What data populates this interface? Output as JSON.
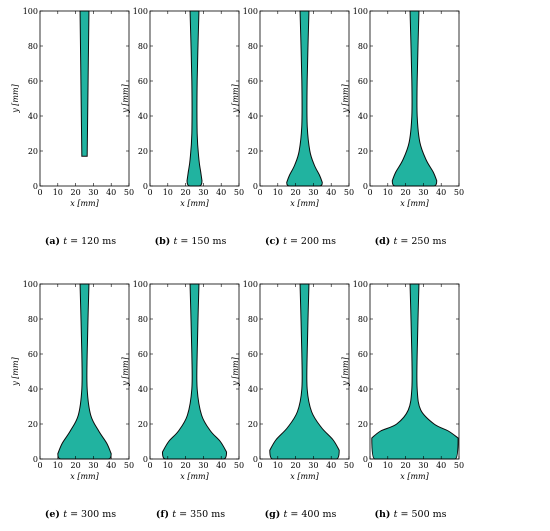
{
  "chart_data": [
    {
      "type": "area",
      "caption_letter": "(a)",
      "caption_var": "t",
      "caption_value": "= 120 ms",
      "xlabel": "x [mm]",
      "ylabel": "y [mm]",
      "xlim": [
        0,
        50
      ],
      "ylim": [
        0,
        100
      ],
      "xticks": [
        0,
        10,
        20,
        30,
        40,
        50
      ],
      "yticks": [
        0,
        20,
        40,
        60,
        80,
        100
      ],
      "profile_y": [
        100,
        17
      ],
      "profile_left_x": [
        22.5,
        23.5
      ],
      "profile_right_x": [
        27.5,
        26.5
      ],
      "bottom_y": 17
    },
    {
      "type": "area",
      "caption_letter": "(b)",
      "caption_var": "t",
      "caption_value": "= 150 ms",
      "xlabel": "x [mm]",
      "ylabel": "y [mm]",
      "xlim": [
        0,
        50
      ],
      "ylim": [
        0,
        100
      ],
      "xticks": [
        0,
        10,
        20,
        30,
        40,
        50
      ],
      "yticks": [
        0,
        20,
        40,
        60,
        80,
        100
      ],
      "profile_y": [
        100,
        60,
        30,
        15,
        8,
        3
      ],
      "profile_left_x": [
        22.5,
        23.5,
        23.5,
        22.5,
        21.5,
        20.8
      ],
      "profile_right_x": [
        27.5,
        26.5,
        26.5,
        27.5,
        28.5,
        29.2
      ],
      "bottom_y": 0
    },
    {
      "type": "area",
      "caption_letter": "(c)",
      "caption_var": "t",
      "caption_value": "= 200 ms",
      "xlabel": "x [mm]",
      "ylabel": "y [mm]",
      "xlim": [
        0,
        50
      ],
      "ylim": [
        0,
        100
      ],
      "xticks": [
        0,
        10,
        20,
        30,
        40,
        50
      ],
      "yticks": [
        0,
        20,
        40,
        60,
        80,
        100
      ],
      "profile_y": [
        100,
        60,
        35,
        20,
        12,
        6,
        2
      ],
      "profile_left_x": [
        22.5,
        23.5,
        23.5,
        22,
        19.5,
        16.5,
        15
      ],
      "profile_right_x": [
        27.5,
        26.5,
        26.5,
        28,
        30.5,
        33.5,
        35
      ],
      "bottom_y": 0
    },
    {
      "type": "area",
      "caption_letter": "(d)",
      "caption_var": "t",
      "caption_value": "= 250 ms",
      "xlabel": "x [mm]",
      "ylabel": "y [mm]",
      "xlim": [
        0,
        50
      ],
      "ylim": [
        0,
        100
      ],
      "xticks": [
        0,
        10,
        20,
        30,
        40,
        50
      ],
      "yticks": [
        0,
        20,
        40,
        60,
        80,
        100
      ],
      "profile_y": [
        100,
        60,
        40,
        25,
        15,
        8,
        3
      ],
      "profile_left_x": [
        22.5,
        23.5,
        23.5,
        22,
        18.5,
        14.5,
        12.5
      ],
      "profile_right_x": [
        27.5,
        26.5,
        26.5,
        28,
        31.5,
        35.5,
        37.5
      ],
      "bottom_y": 0
    },
    {
      "type": "area",
      "caption_letter": "(e)",
      "caption_var": "t",
      "caption_value": "= 300 ms",
      "xlabel": "x [mm]",
      "ylabel": "y [mm]",
      "xlim": [
        0,
        50
      ],
      "ylim": [
        0,
        100
      ],
      "xticks": [
        0,
        10,
        20,
        30,
        40,
        50
      ],
      "yticks": [
        0,
        20,
        40,
        60,
        80,
        100
      ],
      "profile_y": [
        100,
        60,
        40,
        25,
        16,
        9,
        3
      ],
      "profile_left_x": [
        22.5,
        23.5,
        23.5,
        21.5,
        17,
        12.5,
        10
      ],
      "profile_right_x": [
        27.5,
        26.5,
        26.5,
        28.5,
        33,
        37.5,
        40
      ],
      "bottom_y": 0
    },
    {
      "type": "area",
      "caption_letter": "(f)",
      "caption_var": "t",
      "caption_value": "= 350 ms",
      "xlabel": "x [mm]",
      "ylabel": "y [mm]",
      "xlim": [
        0,
        50
      ],
      "ylim": [
        0,
        100
      ],
      "xticks": [
        0,
        10,
        20,
        30,
        40,
        50
      ],
      "yticks": [
        0,
        20,
        40,
        60,
        80,
        100
      ],
      "profile_y": [
        100,
        60,
        40,
        25,
        16,
        10,
        4
      ],
      "profile_left_x": [
        22.5,
        23.5,
        23.5,
        21,
        16,
        10.5,
        7
      ],
      "profile_right_x": [
        27.5,
        26.5,
        26.5,
        29,
        34,
        39.5,
        43
      ],
      "bottom_y": 0
    },
    {
      "type": "area",
      "caption_letter": "(g)",
      "caption_var": "t",
      "caption_value": "= 400 ms",
      "xlabel": "x [mm]",
      "ylabel": "y [mm]",
      "xlim": [
        0,
        50
      ],
      "ylim": [
        0,
        100
      ],
      "xticks": [
        0,
        10,
        20,
        30,
        40,
        50
      ],
      "yticks": [
        0,
        20,
        40,
        60,
        80,
        100
      ],
      "profile_y": [
        100,
        60,
        40,
        27,
        18,
        11,
        5
      ],
      "profile_left_x": [
        22.5,
        23.5,
        23.5,
        21,
        15.5,
        9,
        5.5
      ],
      "profile_right_x": [
        27.5,
        26.5,
        26.5,
        29,
        34.5,
        41,
        44.5
      ],
      "bottom_y": 0
    },
    {
      "type": "area",
      "caption_letter": "(h)",
      "caption_var": "t",
      "caption_value": "= 500 ms",
      "xlabel": "x [mm]",
      "ylabel": "y [mm]",
      "xlim": [
        0,
        50
      ],
      "ylim": [
        0,
        100
      ],
      "xticks": [
        0,
        10,
        20,
        30,
        40,
        50
      ],
      "yticks": [
        0,
        20,
        40,
        60,
        80,
        100
      ],
      "profile_y": [
        100,
        60,
        40,
        28,
        20,
        16,
        12
      ],
      "profile_left_x": [
        22.5,
        23.5,
        23.5,
        21.5,
        15,
        6,
        1
      ],
      "profile_right_x": [
        27.5,
        26.5,
        26.5,
        28.5,
        36,
        44,
        49.5
      ],
      "bottom_y": 0
    }
  ],
  "colors": {
    "fill": "#21b3a0",
    "edge": "#0b0b0b",
    "frame": "#000000"
  }
}
